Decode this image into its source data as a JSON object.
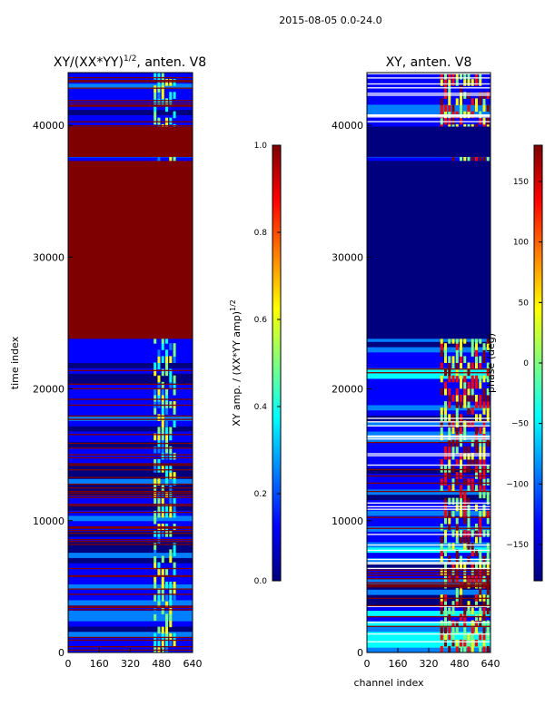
{
  "suptitle": "2015-08-05 0.0-24.0",
  "colors": {
    "jet": [
      "#00007f",
      "#0000ff",
      "#007fff",
      "#00ffff",
      "#7fff7f",
      "#ffff00",
      "#ff7f00",
      "#ff0000",
      "#7f0000"
    ]
  },
  "chart_data": [
    {
      "type": "heatmap",
      "title": "XY/(XX*YY)",
      "title_superscript": "1/2",
      "title_suffix": ", anten. V8",
      "xlabel": "",
      "ylabel": "time index",
      "xlim": [
        0,
        640
      ],
      "ylim": [
        0,
        44000
      ],
      "xticks": [
        0,
        160,
        320,
        480,
        640
      ],
      "yticks": [
        0,
        10000,
        20000,
        30000,
        40000
      ],
      "colorbar": {
        "label": "XY amp. / (XX*YY amp)",
        "label_superscript": "1/2",
        "vmin": 0.0,
        "vmax": 1.0,
        "ticks": [
          "0.0",
          "0.2",
          "0.4",
          "0.6",
          "0.8",
          "1.0"
        ]
      },
      "saturated_ranges": [
        [
          23800,
          37300
        ],
        [
          37600,
          39900
        ]
      ]
    },
    {
      "type": "heatmap",
      "title": "XY, anten. V8",
      "title_superscript": "",
      "title_suffix": "",
      "xlabel": "channel index",
      "ylabel": "",
      "xlim": [
        0,
        640
      ],
      "ylim": [
        0,
        44000
      ],
      "xticks": [
        0,
        160,
        320,
        480,
        640
      ],
      "yticks": [
        0,
        10000,
        20000,
        30000,
        40000
      ],
      "colorbar": {
        "label": "phase (deg)",
        "label_superscript": "",
        "vmin": -180,
        "vmax": 180,
        "ticks": [
          "150",
          "100",
          "50",
          "0",
          "−50",
          "−100",
          "−150"
        ]
      },
      "saturated_ranges": [
        [
          23800,
          37300
        ],
        [
          37600,
          39900
        ]
      ]
    }
  ]
}
